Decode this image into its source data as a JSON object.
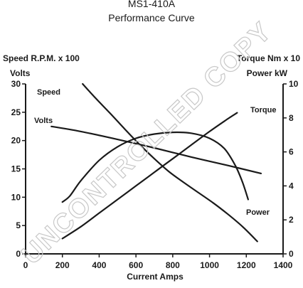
{
  "header": {
    "model": "MS1-410A",
    "subtitle": "Performance Curve"
  },
  "watermark_text": "UNCONTROLLED COPY",
  "chart_data": {
    "type": "line",
    "title": "MS1-410A",
    "subtitle": "Performance Curve",
    "xlabel": "Current Amps",
    "xlim": [
      0,
      1400
    ],
    "xticks": [
      0,
      200,
      400,
      600,
      800,
      1000,
      1200,
      1400
    ],
    "left_axis": {
      "label_line1": "Speed R.P.M. x 100",
      "label_line2": "Volts",
      "ylim": [
        0,
        30
      ],
      "ticks": [
        0,
        5,
        10,
        15,
        20,
        25,
        30
      ]
    },
    "right_axis": {
      "label_line1": "Torque Nm x 10",
      "label_line2": "Power kW",
      "ylim": [
        0,
        10
      ],
      "ticks": [
        0,
        2,
        4,
        6,
        8,
        10
      ]
    },
    "grid": false,
    "legend": "inline labels",
    "series": [
      {
        "name": "Speed",
        "axis": "left",
        "x": [
          310,
          380,
          460,
          540,
          620,
          700,
          780,
          860,
          940,
          1020,
          1100,
          1180,
          1260
        ],
        "y": [
          30,
          27.5,
          24.8,
          22.0,
          19.3,
          16.8,
          14.5,
          12.6,
          10.8,
          9.0,
          7.0,
          4.8,
          2.2
        ]
      },
      {
        "name": "Volts",
        "axis": "left",
        "x": [
          140,
          300,
          500,
          700,
          900,
          1100,
          1280
        ],
        "y": [
          22.5,
          21.6,
          20.2,
          18.7,
          17.1,
          15.6,
          14.2
        ]
      },
      {
        "name": "Torque",
        "axis": "right",
        "x": [
          200,
          300,
          400,
          500,
          600,
          700,
          800,
          900,
          1000,
          1100,
          1150
        ],
        "y": [
          0.9,
          1.6,
          2.4,
          3.2,
          4.0,
          4.8,
          5.6,
          6.4,
          7.2,
          7.95,
          8.3
        ]
      },
      {
        "name": "Power",
        "axis": "right",
        "x": [
          200,
          240,
          300,
          400,
          500,
          600,
          700,
          800,
          900,
          1000,
          1080,
          1140,
          1180,
          1210
        ],
        "y": [
          3.05,
          3.4,
          4.3,
          5.5,
          6.3,
          6.8,
          7.05,
          7.15,
          7.1,
          6.8,
          6.2,
          5.2,
          4.2,
          3.2
        ]
      }
    ]
  }
}
